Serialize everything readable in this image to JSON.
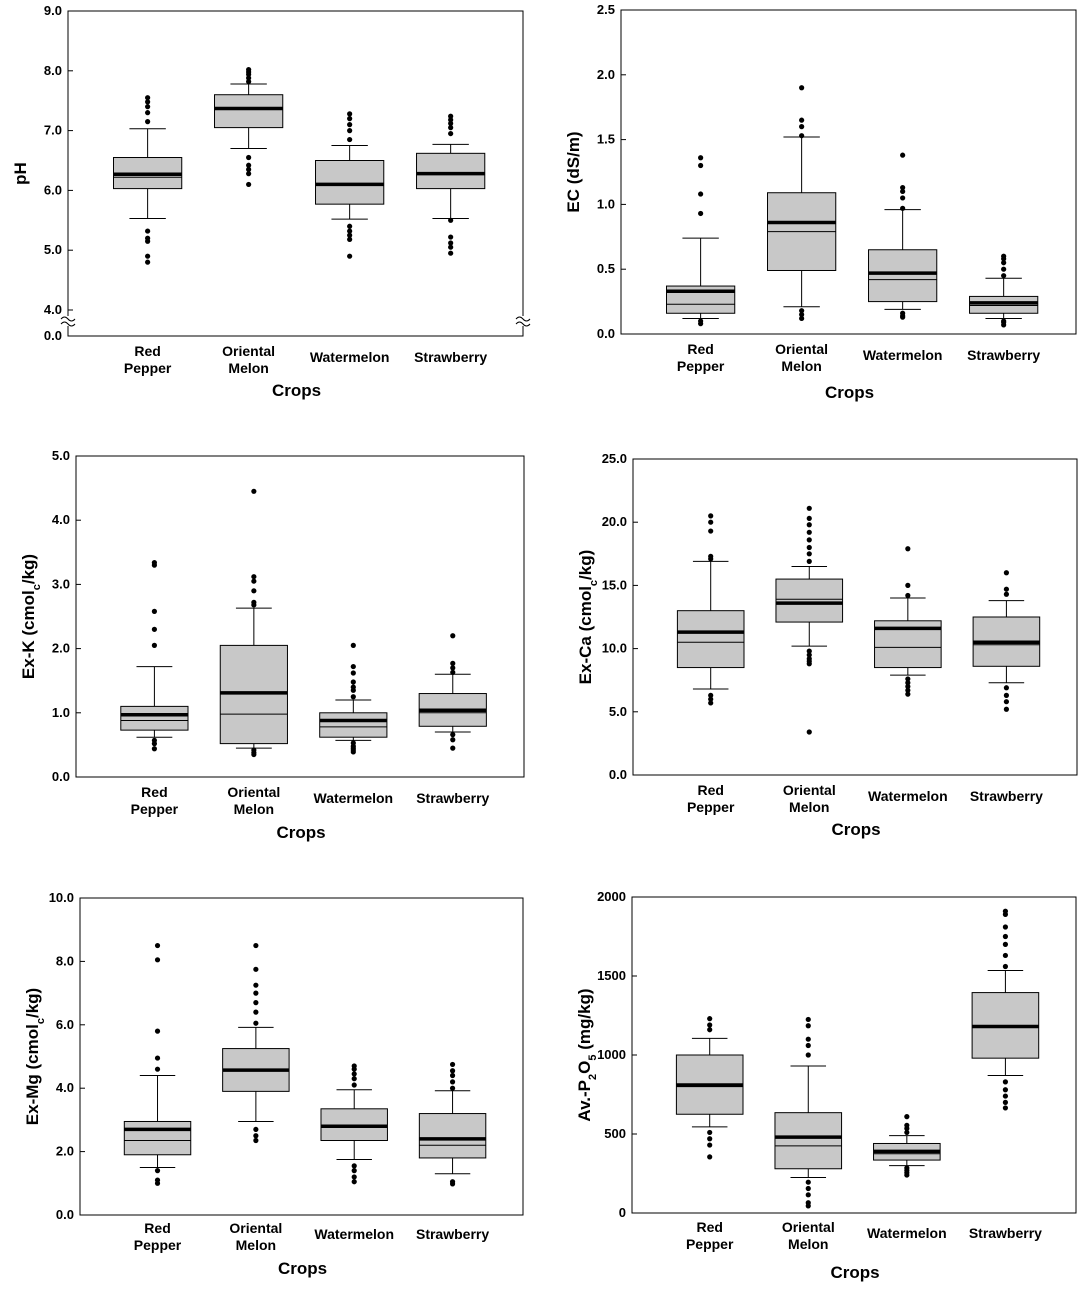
{
  "colors": {
    "box_fill": "#c8c8c8",
    "stroke": "#000000",
    "background": "#ffffff"
  },
  "chart_data": [
    {
      "type": "box",
      "xlabel": "Crops",
      "ylabel": {
        "pre": "pH"
      },
      "ylim": [
        0,
        9
      ],
      "y_axis_break": [
        0.0,
        4.0
      ],
      "yticks": [
        0,
        4,
        5,
        6,
        7,
        8,
        9
      ],
      "yticklabels": [
        "0.0",
        "4.0",
        "5.0",
        "6.0",
        "7.0",
        "8.0",
        "9.0"
      ],
      "categories": [
        [
          "Red",
          "Pepper"
        ],
        [
          "Oriental",
          "Melon"
        ],
        [
          "Watermelon"
        ],
        [
          "Strawberry"
        ]
      ],
      "boxes": [
        {
          "q1": 6.03,
          "median": 6.22,
          "mean": 6.27,
          "q3": 6.55,
          "wlo": 5.53,
          "whi": 7.03,
          "outliers": [
            5.32,
            5.2,
            5.15,
            4.9,
            4.8,
            7.15,
            7.3,
            7.4,
            7.48,
            7.55
          ]
        },
        {
          "q1": 7.05,
          "median": 7.38,
          "mean": 7.37,
          "q3": 7.6,
          "wlo": 6.7,
          "whi": 7.78,
          "outliers": [
            6.55,
            6.42,
            6.35,
            6.28,
            6.1,
            7.82,
            7.88,
            7.94,
            7.98,
            8.02
          ]
        },
        {
          "q1": 5.77,
          "median": 6.1,
          "mean": 6.1,
          "q3": 6.5,
          "wlo": 5.52,
          "whi": 6.75,
          "outliers": [
            5.4,
            5.32,
            5.25,
            5.18,
            4.9,
            6.85,
            7.0,
            7.1,
            7.2,
            7.28
          ]
        },
        {
          "q1": 6.03,
          "median": 6.27,
          "mean": 6.28,
          "q3": 6.62,
          "wlo": 5.53,
          "whi": 6.77,
          "outliers": [
            5.5,
            5.22,
            5.12,
            5.05,
            4.95,
            6.95,
            7.05,
            7.12,
            7.18,
            7.24
          ]
        }
      ]
    },
    {
      "type": "box",
      "xlabel": "Crops",
      "ylabel": {
        "pre": "EC (dS/m)"
      },
      "ylim": [
        0,
        2.5
      ],
      "yticks": [
        0,
        0.5,
        1.0,
        1.5,
        2.0,
        2.5
      ],
      "yticklabels": [
        "0.0",
        "0.5",
        "1.0",
        "1.5",
        "2.0",
        "2.5"
      ],
      "categories": [
        [
          "Red",
          "Pepper"
        ],
        [
          "Oriental",
          "Melon"
        ],
        [
          "Watermelon"
        ],
        [
          "Strawberry"
        ]
      ],
      "boxes": [
        {
          "q1": 0.16,
          "median": 0.23,
          "mean": 0.33,
          "q3": 0.37,
          "wlo": 0.12,
          "whi": 0.74,
          "outliers": [
            0.1,
            0.08,
            0.93,
            1.08,
            1.3,
            1.36
          ]
        },
        {
          "q1": 0.49,
          "median": 0.79,
          "mean": 0.86,
          "q3": 1.09,
          "wlo": 0.21,
          "whi": 1.52,
          "outliers": [
            0.18,
            0.15,
            0.12,
            1.53,
            1.6,
            1.65,
            1.9
          ]
        },
        {
          "q1": 0.25,
          "median": 0.42,
          "mean": 0.47,
          "q3": 0.65,
          "wlo": 0.19,
          "whi": 0.96,
          "outliers": [
            0.16,
            0.14,
            0.13,
            0.97,
            1.05,
            1.1,
            1.13,
            1.38
          ]
        },
        {
          "q1": 0.16,
          "median": 0.22,
          "mean": 0.24,
          "q3": 0.29,
          "wlo": 0.12,
          "whi": 0.43,
          "outliers": [
            0.1,
            0.09,
            0.07,
            0.45,
            0.5,
            0.55,
            0.58,
            0.6
          ]
        }
      ]
    },
    {
      "type": "box",
      "xlabel": "Crops",
      "ylabel": {
        "pre": "Ex-K (cmol",
        "sub": "c",
        "post": "/kg)"
      },
      "ylim": [
        0,
        5
      ],
      "yticks": [
        0,
        1,
        2,
        3,
        4,
        5
      ],
      "yticklabels": [
        "0.0",
        "1.0",
        "2.0",
        "3.0",
        "4.0",
        "5.0"
      ],
      "categories": [
        [
          "Red",
          "Pepper"
        ],
        [
          "Oriental",
          "Melon"
        ],
        [
          "Watermelon"
        ],
        [
          "Strawberry"
        ]
      ],
      "boxes": [
        {
          "q1": 0.73,
          "median": 0.88,
          "mean": 0.97,
          "q3": 1.1,
          "wlo": 0.62,
          "whi": 1.72,
          "outliers": [
            0.57,
            0.52,
            0.44,
            2.05,
            2.3,
            2.58,
            3.3,
            3.34
          ]
        },
        {
          "q1": 0.52,
          "median": 0.98,
          "mean": 1.31,
          "q3": 2.05,
          "wlo": 0.45,
          "whi": 2.63,
          "outliers": [
            0.42,
            0.38,
            0.35,
            2.68,
            2.72,
            2.9,
            3.05,
            3.12,
            4.45
          ]
        },
        {
          "q1": 0.62,
          "median": 0.78,
          "mean": 0.88,
          "q3": 1.0,
          "wlo": 0.57,
          "whi": 1.2,
          "outliers": [
            0.53,
            0.48,
            0.45,
            0.42,
            0.39,
            1.25,
            1.35,
            1.4,
            1.48,
            1.62,
            1.72,
            2.05
          ]
        },
        {
          "q1": 0.79,
          "median": 1.0,
          "mean": 1.04,
          "q3": 1.3,
          "wlo": 0.7,
          "whi": 1.6,
          "outliers": [
            0.66,
            0.58,
            0.45,
            1.63,
            1.7,
            1.77,
            2.2
          ]
        }
      ]
    },
    {
      "type": "box",
      "xlabel": "Crops",
      "ylabel": {
        "pre": "Ex-Ca (cmol",
        "sub": "c",
        "post": "/kg)"
      },
      "ylim": [
        0,
        25
      ],
      "yticks": [
        0,
        5,
        10,
        15,
        20,
        25
      ],
      "yticklabels": [
        "0.0",
        "5.0",
        "10.0",
        "15.0",
        "20.0",
        "25.0"
      ],
      "categories": [
        [
          "Red",
          "Pepper"
        ],
        [
          "Oriental",
          "Melon"
        ],
        [
          "Watermelon"
        ],
        [
          "Strawberry"
        ]
      ],
      "boxes": [
        {
          "q1": 8.5,
          "median": 10.5,
          "mean": 11.3,
          "q3": 13.0,
          "wlo": 6.8,
          "whi": 16.9,
          "outliers": [
            6.3,
            6.0,
            5.7,
            17.1,
            17.3,
            19.3,
            20.0,
            20.5
          ]
        },
        {
          "q1": 12.1,
          "median": 13.9,
          "mean": 13.6,
          "q3": 15.5,
          "wlo": 10.2,
          "whi": 16.5,
          "outliers": [
            9.8,
            9.5,
            9.2,
            9.0,
            8.8,
            3.4,
            16.9,
            17.5,
            18.0,
            18.6,
            19.2,
            19.8,
            20.3,
            21.1
          ]
        },
        {
          "q1": 8.5,
          "median": 10.1,
          "mean": 11.6,
          "q3": 12.2,
          "wlo": 7.9,
          "whi": 14.0,
          "outliers": [
            7.6,
            7.3,
            7.0,
            6.7,
            6.4,
            14.2,
            15.0,
            17.9
          ]
        },
        {
          "q1": 8.6,
          "median": 10.3,
          "mean": 10.5,
          "q3": 12.5,
          "wlo": 7.3,
          "whi": 13.8,
          "outliers": [
            6.9,
            6.3,
            5.8,
            5.2,
            14.3,
            14.7,
            16.0
          ]
        }
      ]
    },
    {
      "type": "box",
      "xlabel": "Crops",
      "ylabel": {
        "pre": "Ex-Mg (cmol",
        "sub": "c",
        "post": "/kg)"
      },
      "ylim": [
        0,
        10
      ],
      "yticks": [
        0,
        2,
        4,
        6,
        8,
        10
      ],
      "yticklabels": [
        "0.0",
        "2.0",
        "4.0",
        "6.0",
        "8.0",
        "10.0"
      ],
      "categories": [
        [
          "Red",
          "Pepper"
        ],
        [
          "Oriental",
          "Melon"
        ],
        [
          "Watermelon"
        ],
        [
          "Strawberry"
        ]
      ],
      "boxes": [
        {
          "q1": 1.9,
          "median": 2.35,
          "mean": 2.7,
          "q3": 2.95,
          "wlo": 1.5,
          "whi": 4.4,
          "outliers": [
            1.4,
            1.1,
            1.0,
            4.6,
            4.95,
            5.8,
            8.05,
            8.5
          ]
        },
        {
          "q1": 3.9,
          "median": 4.55,
          "mean": 4.57,
          "q3": 5.25,
          "wlo": 2.95,
          "whi": 5.92,
          "outliers": [
            2.7,
            2.5,
            2.35,
            6.05,
            6.4,
            6.7,
            7.0,
            7.25,
            7.75,
            8.5
          ]
        },
        {
          "q1": 2.35,
          "median": 2.78,
          "mean": 2.8,
          "q3": 3.35,
          "wlo": 1.75,
          "whi": 3.95,
          "outliers": [
            1.55,
            1.4,
            1.2,
            1.05,
            4.1,
            4.3,
            4.45,
            4.6,
            4.7
          ]
        },
        {
          "q1": 1.8,
          "median": 2.2,
          "mean": 2.4,
          "q3": 3.2,
          "wlo": 1.3,
          "whi": 3.92,
          "outliers": [
            1.05,
            0.98,
            4.0,
            4.2,
            4.4,
            4.55,
            4.75
          ]
        }
      ]
    },
    {
      "type": "box",
      "xlabel": "Crops",
      "ylabel": {
        "pre": "Av.-P",
        "sub": "2",
        "mid": "O",
        "sub2": "5",
        "post": " (mg/kg)"
      },
      "ylim": [
        0,
        2000
      ],
      "yticks": [
        0,
        500,
        1000,
        1500,
        2000
      ],
      "yticklabels": [
        "0",
        "500",
        "1000",
        "1500",
        "2000"
      ],
      "categories": [
        [
          "Red",
          "Pepper"
        ],
        [
          "Oriental",
          "Melon"
        ],
        [
          "Watermelon"
        ],
        [
          "Strawberry"
        ]
      ],
      "boxes": [
        {
          "q1": 625,
          "median": 800,
          "mean": 810,
          "q3": 1000,
          "wlo": 545,
          "whi": 1105,
          "outliers": [
            510,
            470,
            430,
            355,
            1160,
            1190,
            1230
          ]
        },
        {
          "q1": 280,
          "median": 425,
          "mean": 480,
          "q3": 635,
          "wlo": 225,
          "whi": 930,
          "outliers": [
            195,
            155,
            115,
            65,
            45,
            1000,
            1060,
            1100,
            1185,
            1225
          ]
        },
        {
          "q1": 335,
          "median": 375,
          "mean": 390,
          "q3": 440,
          "wlo": 300,
          "whi": 490,
          "outliers": [
            285,
            270,
            255,
            240,
            510,
            535,
            555,
            610
          ]
        },
        {
          "q1": 980,
          "median": 1175,
          "mean": 1180,
          "q3": 1395,
          "wlo": 870,
          "whi": 1535,
          "outliers": [
            830,
            780,
            740,
            700,
            665,
            1560,
            1630,
            1700,
            1750,
            1810,
            1890,
            1910
          ]
        }
      ]
    }
  ]
}
